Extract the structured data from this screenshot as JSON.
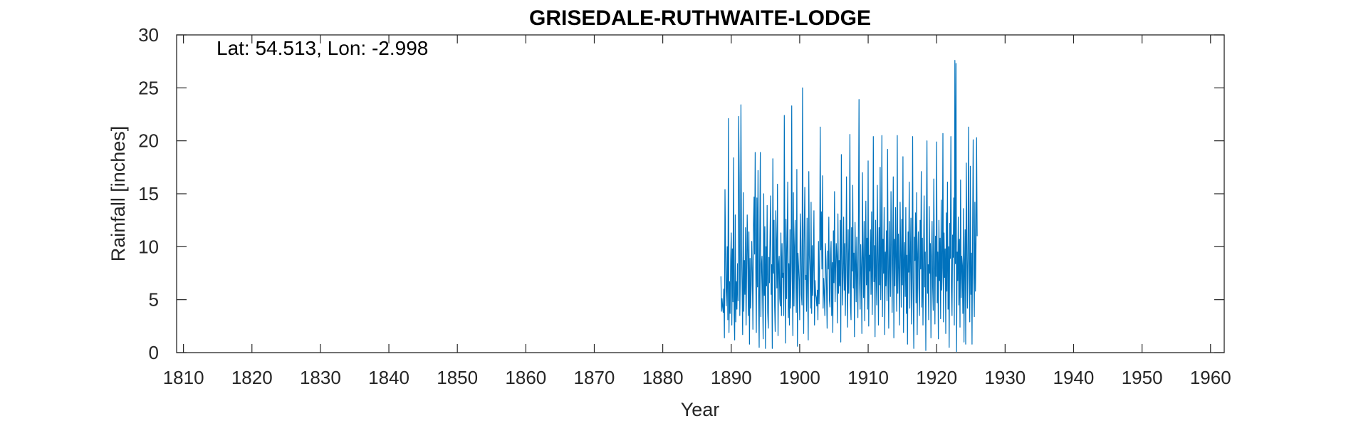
{
  "chart_data": {
    "type": "line",
    "title": "GRISEDALE-RUTHWAITE-LODGE",
    "annotation": "Lat: 54.513, Lon: -2.998",
    "xlabel": "Year",
    "ylabel": "Rainfall [inches]",
    "xlim": [
      1809,
      1962
    ],
    "ylim": [
      0,
      30
    ],
    "xticks": [
      1810,
      1820,
      1830,
      1840,
      1850,
      1860,
      1870,
      1880,
      1890,
      1900,
      1910,
      1920,
      1930,
      1940,
      1950,
      1960
    ],
    "yticks": [
      0,
      5,
      10,
      15,
      20,
      25,
      30
    ],
    "grid": false,
    "series": [
      {
        "color": "#0072BD",
        "x_start": 1888.5,
        "x_step": 0.08333,
        "values": [
          7.2,
          3.9,
          5.1,
          4.3,
          3.8,
          6.0,
          1.4,
          15.4,
          9.6,
          4.4,
          5.9,
          10.0,
          3.1,
          22.1,
          1.9,
          6.7,
          3.7,
          8.8,
          11.3,
          2.6,
          9.8,
          4.8,
          18.4,
          3.6,
          1.2,
          13.0,
          2.9,
          6.7,
          4.1,
          8.4,
          4.9,
          22.3,
          16.5,
          3.5,
          7.3,
          23.4,
          10.2,
          6.1,
          1.7,
          15.1,
          3.9,
          8.7,
          5.5,
          11.8,
          2.6,
          7.7,
          13.0,
          9.2,
          3.5,
          11.4,
          0.8,
          8.9,
          4.2,
          6.3,
          10.5,
          7.5,
          2.2,
          12.1,
          14.7,
          9.3,
          18.9,
          7.9,
          1.9,
          14.6,
          6.2,
          17.2,
          5.2,
          0.5,
          10.6,
          18.9,
          3.4,
          8.2,
          9.1,
          5.3,
          1.3,
          15.0,
          5.4,
          11.9,
          0.4,
          10.0,
          6.3,
          13.9,
          3.8,
          2.3,
          9.0,
          6.6,
          10.9,
          14.8,
          5.5,
          8.3,
          0.4,
          18.3,
          7.5,
          12.5,
          4.4,
          2.0,
          13.4,
          10.5,
          6.1,
          15.9,
          1.6,
          8.3,
          9.1,
          5.1,
          4.4,
          11.3,
          3.5,
          10.3,
          7.1,
          7.5,
          3.5,
          22.4,
          9.7,
          0.9,
          12.6,
          5.1,
          10.2,
          16.1,
          3.3,
          8.4,
          2.6,
          11.6,
          4.2,
          8.5,
          23.3,
          6.9,
          1.6,
          15.1,
          4.4,
          10.0,
          12.5,
          7.7,
          3.8,
          17.3,
          0.6,
          9.4,
          8.2,
          6.7,
          3.1,
          13.1,
          10.6,
          5.5,
          4.5,
          25.0,
          8.3,
          1.8,
          11.6,
          15.6,
          6.9,
          7.3,
          3.9,
          12.7,
          5.7,
          1.2,
          17.1,
          9.2,
          7.7,
          4.2,
          14.2,
          3.7,
          10.1,
          5.4,
          8.6,
          13.4,
          2.6,
          6.8,
          5.5,
          5.2,
          4.4,
          5.9,
          3.1,
          10.5,
          4.6,
          8.2,
          21.3,
          9.7,
          13.3,
          7.9,
          16.7,
          4.2,
          7.0,
          5.6,
          3.5,
          10.3,
          8.8,
          6.1,
          2.3,
          9.6,
          7.9,
          12.8,
          5.0,
          4.3,
          9.2,
          10.5,
          3.5,
          8.5,
          1.9,
          11.5,
          6.6,
          15.2,
          4.8,
          7.9,
          10.3,
          9.1,
          2.8,
          13.1,
          5.6,
          8.7,
          6.3,
          12.5,
          1.0,
          18.7,
          9.4,
          4.5,
          7.8,
          12.8,
          5.9,
          10.3,
          3.5,
          8.6,
          16.6,
          7.2,
          2.4,
          11.6,
          5.6,
          9.9,
          20.6,
          4.5,
          3.1,
          11.8,
          7.7,
          15.8,
          6.1,
          9.4,
          1.5,
          12.3,
          8.6,
          4.8,
          10.9,
          7.1,
          3.3,
          12.1,
          23.9,
          6.5,
          4.1,
          10.2,
          7.8,
          1.8,
          17.0,
          9.0,
          5.2,
          12.4,
          3.0,
          8.4,
          14.3,
          6.4,
          10.8,
          4.1,
          18.1,
          2.5,
          9.2,
          7.7,
          11.6,
          5.5,
          13.3,
          3.6,
          8.3,
          20.4,
          6.7,
          10.1,
          1.5,
          12.5,
          7.3,
          4.5,
          15.8,
          9.1,
          2.6,
          11.8,
          6.4,
          17.5,
          5.0,
          8.6,
          20.5,
          3.4,
          10.7,
          7.5,
          13.7,
          1.7,
          9.5,
          6.3,
          11.5,
          4.9,
          19.2,
          7.7,
          2.3,
          12.4,
          8.3,
          5.3,
          15.2,
          10.2,
          3.8,
          9.5,
          16.6,
          1.4,
          10.7,
          6.3,
          13.7,
          8.4,
          3.9,
          20.5,
          5.6,
          11.2,
          7.8,
          2.6,
          14.2,
          9.6,
          4.3,
          12.6,
          6.4,
          18.5,
          1.9,
          8.7,
          10.4,
          5.3,
          13.7,
          3.7,
          9.2,
          0.8,
          11.4,
          7.6,
          16.1,
          4.2,
          9.0,
          12.7,
          2.7,
          7.1,
          20.4,
          5.4,
          0.4,
          10.9,
          8.7,
          13.2,
          4.7,
          15.1,
          1.7,
          9.3,
          11.4,
          6.1,
          3.5,
          12.5,
          7.9,
          17.1,
          4.3,
          10.8,
          2.6,
          8.6,
          14.8,
          6.2,
          9.5,
          0.2,
          11.7,
          20.0,
          5.6,
          8.3,
          3.1,
          13.8,
          7.5,
          10.3,
          1.4,
          9.0,
          12.4,
          6.2,
          4.0,
          16.4,
          8.8,
          2.7,
          11.0,
          7.2,
          19.9,
          4.7,
          9.5,
          1.3,
          12.5,
          6.8,
          10.8,
          3.2,
          14.4,
          5.9,
          8.0,
          20.7,
          2.9,
          11.3,
          7.1,
          9.8,
          1.8,
          13.2,
          5.8,
          16.1,
          4.1,
          10.0,
          0.5,
          12.2,
          8.9,
          20.4,
          6.1,
          3.5,
          11.1,
          9.0,
          14.6,
          2.6,
          27.6,
          8.4,
          27.3,
          0.1,
          9.5,
          6.8,
          12.8,
          4.5,
          10.7,
          2.4,
          16.3,
          5.2,
          9.1,
          8.2,
          3.7,
          13.6,
          1.0,
          7.8,
          11.6,
          0.8,
          17.9,
          10.3,
          4.2,
          8.9,
          21.3,
          6.9,
          2.9,
          17.6,
          5.5,
          9.4,
          0.8,
          11.5,
          20.1,
          7.3,
          3.4,
          14.2,
          5.8,
          10.2,
          20.3,
          11.0
        ]
      }
    ]
  }
}
